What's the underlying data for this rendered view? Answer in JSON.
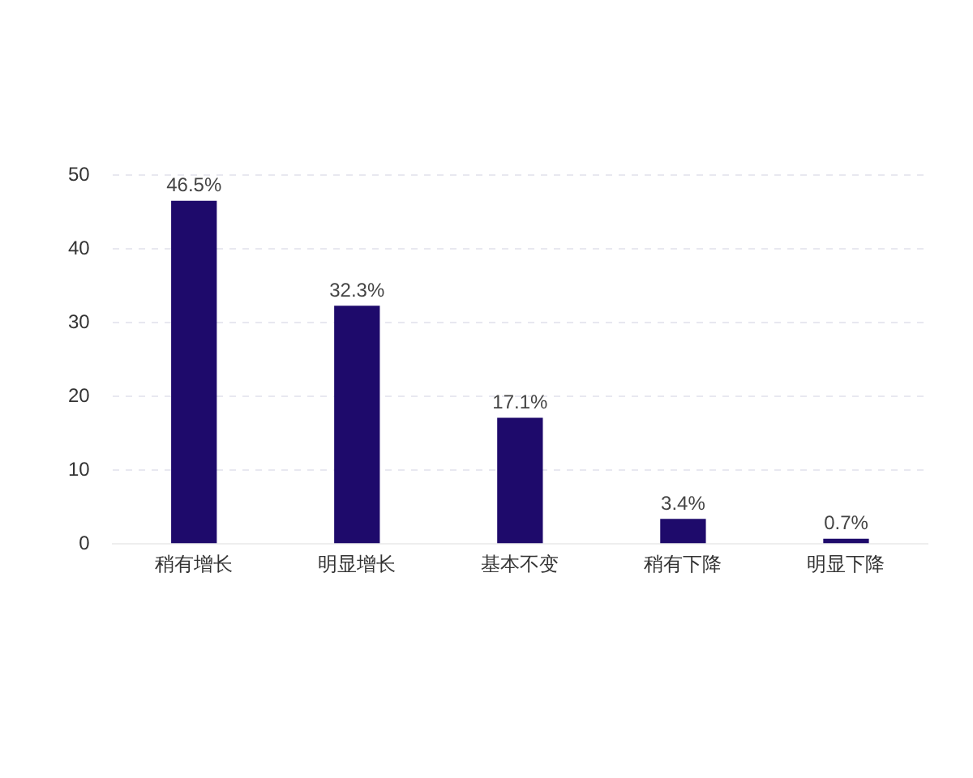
{
  "chart_data": {
    "type": "bar",
    "categories": [
      "稍有增长",
      "明显增长",
      "基本不变",
      "稍有下降",
      "明显下降"
    ],
    "values": [
      46.5,
      32.3,
      17.1,
      3.4,
      0.7
    ],
    "value_labels": [
      "46.5%",
      "32.3%",
      "17.1%",
      "3.4%",
      "0.7%"
    ],
    "color": "#1e0a6b",
    "ylim": [
      0,
      50
    ],
    "yticks": [
      0,
      10,
      20,
      30,
      40,
      50
    ],
    "grid": "y",
    "legend": false
  }
}
